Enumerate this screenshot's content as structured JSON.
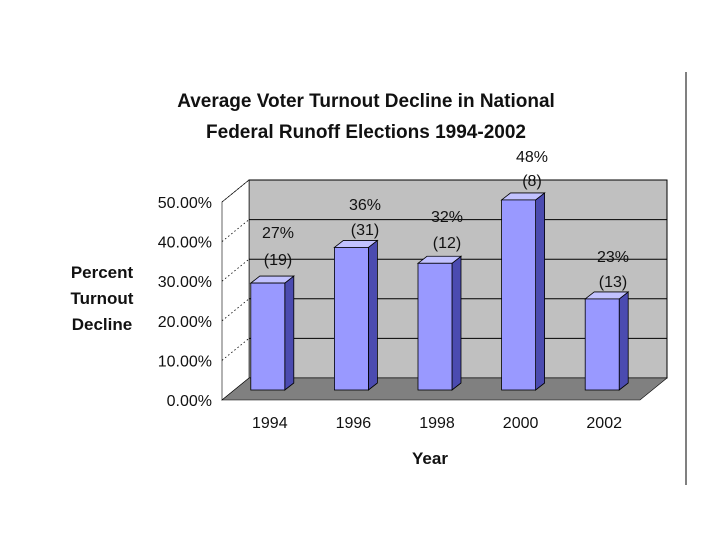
{
  "chart_data": {
    "type": "bar",
    "title": "Average Voter Turnout Decline in National Federal Runoff Elections 1994-2002",
    "title_lines": [
      "Average Voter Turnout Decline in National",
      "Federal Runoff Elections 1994-2002"
    ],
    "xlabel": "Year",
    "ylabel": "Percent Turnout Decline",
    "ylabel_lines": [
      "Percent",
      "Turnout",
      "Decline"
    ],
    "categories": [
      "1994",
      "1996",
      "1998",
      "2000",
      "2002"
    ],
    "values": [
      27,
      36,
      32,
      48,
      23
    ],
    "counts": [
      19,
      31,
      12,
      8,
      13
    ],
    "data_labels": [
      [
        "27%",
        "(19)"
      ],
      [
        "36%",
        "(31)"
      ],
      [
        "32%",
        "(12)"
      ],
      [
        "48%",
        "(8)"
      ],
      [
        "23%",
        "(13)"
      ]
    ],
    "ylim": [
      0,
      50
    ],
    "yticks": [
      0,
      10,
      20,
      30,
      40,
      50
    ],
    "ytick_labels": [
      "0.00%",
      "10.00%",
      "20.00%",
      "30.00%",
      "40.00%",
      "50.00%"
    ],
    "grid": true,
    "legend": "none",
    "style": "3d-column",
    "colors": {
      "bar_front": "#9999ff",
      "bar_side": "#4b4bb0",
      "bar_top": "#c2c2ff",
      "plot_wall": "#c0c0c0",
      "floor": "#808080",
      "gridline": "#000000"
    }
  }
}
